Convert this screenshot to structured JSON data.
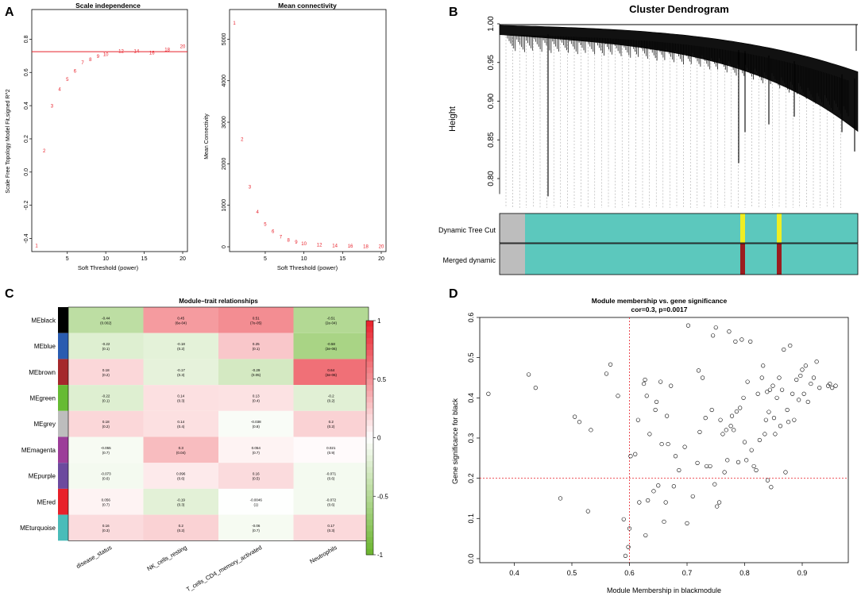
{
  "panels": {
    "a": "A",
    "b": "B",
    "c": "C",
    "d": "D"
  },
  "chart_data": [
    {
      "id": "scale_independence",
      "type": "scatter",
      "title": "Scale independence",
      "xlabel": "Soft Threshold (power)",
      "ylabel": "Scale Free Topology Model Fit,signed R^2",
      "xlim": [
        1,
        20
      ],
      "ylim": [
        -0.45,
        0.95
      ],
      "xticks": [
        5,
        10,
        15,
        20
      ],
      "yticks": [
        -0.4,
        -0.2,
        0.0,
        0.2,
        0.4,
        0.6,
        0.8
      ],
      "hline": 0.725,
      "hline_color": "#e8202a",
      "marker_color": "#e8202a",
      "x": [
        1,
        2,
        3,
        4,
        5,
        6,
        7,
        8,
        9,
        10,
        12,
        14,
        16,
        18,
        20
      ],
      "y": [
        -0.44,
        0.13,
        0.4,
        0.5,
        0.56,
        0.61,
        0.66,
        0.68,
        0.7,
        0.71,
        0.73,
        0.73,
        0.72,
        0.74,
        0.76
      ],
      "labels": [
        "1",
        "2",
        "3",
        "4",
        "5",
        "6",
        "7",
        "8",
        "9",
        "10",
        "12",
        "14",
        "16",
        "18",
        "20"
      ]
    },
    {
      "id": "mean_connectivity",
      "type": "scatter",
      "title": "Mean connectivity",
      "xlabel": "Soft Threshold (power)",
      "ylabel": "Mean Connectivity",
      "xlim": [
        1,
        20
      ],
      "ylim": [
        0,
        5600
      ],
      "xticks": [
        5,
        10,
        15,
        20
      ],
      "yticks": [
        0,
        1000,
        2000,
        3000,
        4000,
        5000
      ],
      "marker_color": "#e8202a",
      "x": [
        1,
        2,
        3,
        4,
        5,
        6,
        7,
        8,
        9,
        10,
        12,
        14,
        16,
        18,
        20
      ],
      "y": [
        5400,
        2600,
        1450,
        850,
        550,
        380,
        250,
        170,
        120,
        90,
        60,
        40,
        30,
        20,
        15
      ],
      "labels": [
        "1",
        "2",
        "3",
        "4",
        "5",
        "6",
        "7",
        "8",
        "9",
        "10",
        "12",
        "14",
        "16",
        "18",
        "20"
      ]
    },
    {
      "id": "cluster_dendrogram",
      "type": "dendrogram",
      "title": "Cluster Dendrogram",
      "ylabel": "Height",
      "ylim": [
        0.76,
        1.0
      ],
      "yticks": [
        0.8,
        0.85,
        0.9,
        0.95,
        1.0
      ],
      "ytick_labels": [
        "0.80",
        "0.85",
        "0.90",
        "0.95",
        "1.00"
      ],
      "track_labels": [
        "Dynamic Tree Cut",
        "Merged dynamic"
      ],
      "colors": {
        "grey": "#bdbdbd",
        "turquoise": "#5cc8bd",
        "yellow": "#f0ee22",
        "darkred": "#9b1c1f"
      }
    },
    {
      "id": "module_trait",
      "type": "heatmap",
      "title": "Module–trait relationships",
      "rows": [
        "MEblack",
        "MEblue",
        "MEbrown",
        "MEgreen",
        "MEgrey",
        "MEmagenta",
        "MEpurple",
        "MEred",
        "MEturquoise"
      ],
      "row_colors": [
        "#000000",
        "#2a5cb0",
        "#a5282c",
        "#66bb34",
        "#bdbdbd",
        "#9c3d99",
        "#6c4a9e",
        "#e8202a",
        "#49bcb9"
      ],
      "columns": [
        "disease_status",
        "NK_cells_resting",
        "T_cells_CD4_memory_activated",
        "Neutrophils"
      ],
      "values": [
        [
          -0.44,
          0.45,
          0.51,
          -0.51
        ],
        [
          -0.22,
          -0.18,
          0.25,
          -0.58
        ],
        [
          0.18,
          -0.17,
          -0.29,
          0.64
        ],
        [
          -0.22,
          0.14,
          0.13,
          -0.2
        ],
        [
          0.18,
          0.14,
          -0.038,
          0.2
        ],
        [
          -0.055,
          0.3,
          0.054,
          0.021
        ],
        [
          -0.073,
          0.096,
          0.16,
          -0.071
        ],
        [
          0.056,
          -0.19,
          -0.0046,
          -0.072
        ],
        [
          0.16,
          0.2,
          -0.06,
          0.17
        ]
      ],
      "value_labels": [
        [
          "-0.44",
          "0.45",
          "0.51",
          "-0.51"
        ],
        [
          "-0.22",
          "-0.18",
          "0.25",
          "-0.58"
        ],
        [
          "0.18",
          "-0.17",
          "-0.29",
          "0.64"
        ],
        [
          "-0.22",
          "0.14",
          "0.13",
          "-0.2"
        ],
        [
          "0.18",
          "0.14",
          "-0.038",
          "0.2"
        ],
        [
          "-0.055",
          "0.3",
          "0.054",
          "0.021"
        ],
        [
          "-0.073",
          "0.096",
          "0.16",
          "-0.071"
        ],
        [
          "0.056",
          "-0.19",
          "-0.0046",
          "-0.072"
        ],
        [
          "0.16",
          "0.2",
          "-0.06",
          "0.17"
        ]
      ],
      "pvalues": [
        [
          "(0.002)",
          "(6e-04)",
          "(7e-05)",
          "(2e-04)"
        ],
        [
          "(0.1)",
          "(0.2)",
          "(0.1)",
          "(3e-06)"
        ],
        [
          "(0.2)",
          "(0.3)",
          "(0.05)",
          "(3e-06)"
        ],
        [
          "(0.1)",
          "(0.3)",
          "(0.4)",
          "(0.2)"
        ],
        [
          "(0.2)",
          "(0.4)",
          "(0.8)",
          "(0.2)"
        ],
        [
          "(0.7)",
          "(0.04)",
          "(0.7)",
          "(0.9)"
        ],
        [
          "(0.6)",
          "(0.6)",
          "(0.5)",
          "(0.6)"
        ],
        [
          "(0.7)",
          "(0.3)",
          "(1)",
          "(0.6)"
        ],
        [
          "(0.3)",
          "(0.2)",
          "(0.7)",
          "(0.3)"
        ]
      ],
      "scale": [
        -1,
        1
      ],
      "scale_ticks": [
        1,
        0.5,
        0,
        -0.5,
        -1
      ],
      "scale_tick_labels": [
        "1",
        "0.5",
        "0",
        "-0.5",
        "-1"
      ],
      "colors": {
        "neg": "#6ab42d",
        "mid": "#ffffff",
        "pos": "#e8202a"
      }
    },
    {
      "id": "mm_vs_gs",
      "type": "scatter",
      "title": "Module membership vs. gene significance",
      "subtitle": "cor=0.3, p=0.0017",
      "xlabel": "Module Membership in blackmodule",
      "ylabel": "Gene significance for black",
      "xlim": [
        0.34,
        0.98
      ],
      "ylim": [
        -0.01,
        0.6
      ],
      "xticks": [
        0.4,
        0.5,
        0.6,
        0.7,
        0.8,
        0.9
      ],
      "xtick_labels": [
        "0.4",
        "0.5",
        "0.6",
        "0.7",
        "0.8",
        "0.9"
      ],
      "yticks": [
        0.0,
        0.1,
        0.2,
        0.3,
        0.4,
        0.5,
        0.6
      ],
      "ytick_labels": [
        "0.0",
        "0.1",
        "0.2",
        "0.3",
        "0.4",
        "0.5",
        "0.6"
      ],
      "vline": 0.6,
      "hline": 0.2,
      "ref_color": "#e8202a",
      "points": [
        [
          0.355,
          0.41
        ],
        [
          0.425,
          0.458
        ],
        [
          0.437,
          0.425
        ],
        [
          0.48,
          0.15
        ],
        [
          0.505,
          0.353
        ],
        [
          0.513,
          0.34
        ],
        [
          0.528,
          0.118
        ],
        [
          0.533,
          0.32
        ],
        [
          0.56,
          0.46
        ],
        [
          0.567,
          0.483
        ],
        [
          0.58,
          0.405
        ],
        [
          0.59,
          0.098
        ],
        [
          0.593,
          0.007
        ],
        [
          0.598,
          0.029
        ],
        [
          0.6,
          0.075
        ],
        [
          0.602,
          0.255
        ],
        [
          0.61,
          0.26
        ],
        [
          0.615,
          0.345
        ],
        [
          0.617,
          0.14
        ],
        [
          0.625,
          0.435
        ],
        [
          0.627,
          0.445
        ],
        [
          0.628,
          0.058
        ],
        [
          0.63,
          0.405
        ],
        [
          0.632,
          0.145
        ],
        [
          0.635,
          0.31
        ],
        [
          0.642,
          0.168
        ],
        [
          0.645,
          0.37
        ],
        [
          0.647,
          0.39
        ],
        [
          0.65,
          0.182
        ],
        [
          0.654,
          0.44
        ],
        [
          0.656,
          0.285
        ],
        [
          0.66,
          0.092
        ],
        [
          0.663,
          0.14
        ],
        [
          0.665,
          0.355
        ],
        [
          0.667,
          0.285
        ],
        [
          0.672,
          0.43
        ],
        [
          0.677,
          0.18
        ],
        [
          0.68,
          0.255
        ],
        [
          0.686,
          0.22
        ],
        [
          0.696,
          0.278
        ],
        [
          0.7,
          0.088
        ],
        [
          0.702,
          0.58
        ],
        [
          0.71,
          0.155
        ],
        [
          0.718,
          0.238
        ],
        [
          0.72,
          0.468
        ],
        [
          0.722,
          0.315
        ],
        [
          0.727,
          0.45
        ],
        [
          0.732,
          0.35
        ],
        [
          0.734,
          0.23
        ],
        [
          0.74,
          0.23
        ],
        [
          0.743,
          0.37
        ],
        [
          0.745,
          0.555
        ],
        [
          0.748,
          0.185
        ],
        [
          0.75,
          0.575
        ],
        [
          0.752,
          0.13
        ],
        [
          0.756,
          0.14
        ],
        [
          0.758,
          0.345
        ],
        [
          0.762,
          0.31
        ],
        [
          0.765,
          0.215
        ],
        [
          0.768,
          0.32
        ],
        [
          0.77,
          0.245
        ],
        [
          0.773,
          0.565
        ],
        [
          0.776,
          0.33
        ],
        [
          0.778,
          0.355
        ],
        [
          0.781,
          0.32
        ],
        [
          0.784,
          0.54
        ],
        [
          0.786,
          0.366
        ],
        [
          0.789,
          0.24
        ],
        [
          0.792,
          0.375
        ],
        [
          0.795,
          0.545
        ],
        [
          0.798,
          0.4
        ],
        [
          0.8,
          0.29
        ],
        [
          0.803,
          0.245
        ],
        [
          0.805,
          0.44
        ],
        [
          0.81,
          0.54
        ],
        [
          0.812,
          0.27
        ],
        [
          0.816,
          0.23
        ],
        [
          0.82,
          0.22
        ],
        [
          0.823,
          0.41
        ],
        [
          0.826,
          0.295
        ],
        [
          0.83,
          0.45
        ],
        [
          0.832,
          0.48
        ],
        [
          0.835,
          0.31
        ],
        [
          0.837,
          0.345
        ],
        [
          0.839,
          0.415
        ],
        [
          0.84,
          0.195
        ],
        [
          0.842,
          0.365
        ],
        [
          0.844,
          0.42
        ],
        [
          0.846,
          0.178
        ],
        [
          0.849,
          0.43
        ],
        [
          0.851,
          0.35
        ],
        [
          0.853,
          0.31
        ],
        [
          0.856,
          0.4
        ],
        [
          0.86,
          0.45
        ],
        [
          0.862,
          0.33
        ],
        [
          0.865,
          0.42
        ],
        [
          0.868,
          0.52
        ],
        [
          0.871,
          0.215
        ],
        [
          0.874,
          0.37
        ],
        [
          0.876,
          0.34
        ],
        [
          0.879,
          0.53
        ],
        [
          0.883,
          0.41
        ],
        [
          0.886,
          0.345
        ],
        [
          0.89,
          0.445
        ],
        [
          0.894,
          0.395
        ],
        [
          0.897,
          0.455
        ],
        [
          0.9,
          0.47
        ],
        [
          0.903,
          0.41
        ],
        [
          0.906,
          0.48
        ],
        [
          0.91,
          0.39
        ],
        [
          0.915,
          0.435
        ],
        [
          0.92,
          0.45
        ],
        [
          0.925,
          0.49
        ],
        [
          0.93,
          0.425
        ],
        [
          0.945,
          0.43
        ],
        [
          0.948,
          0.435
        ],
        [
          0.952,
          0.425
        ],
        [
          0.958,
          0.43
        ]
      ]
    }
  ]
}
